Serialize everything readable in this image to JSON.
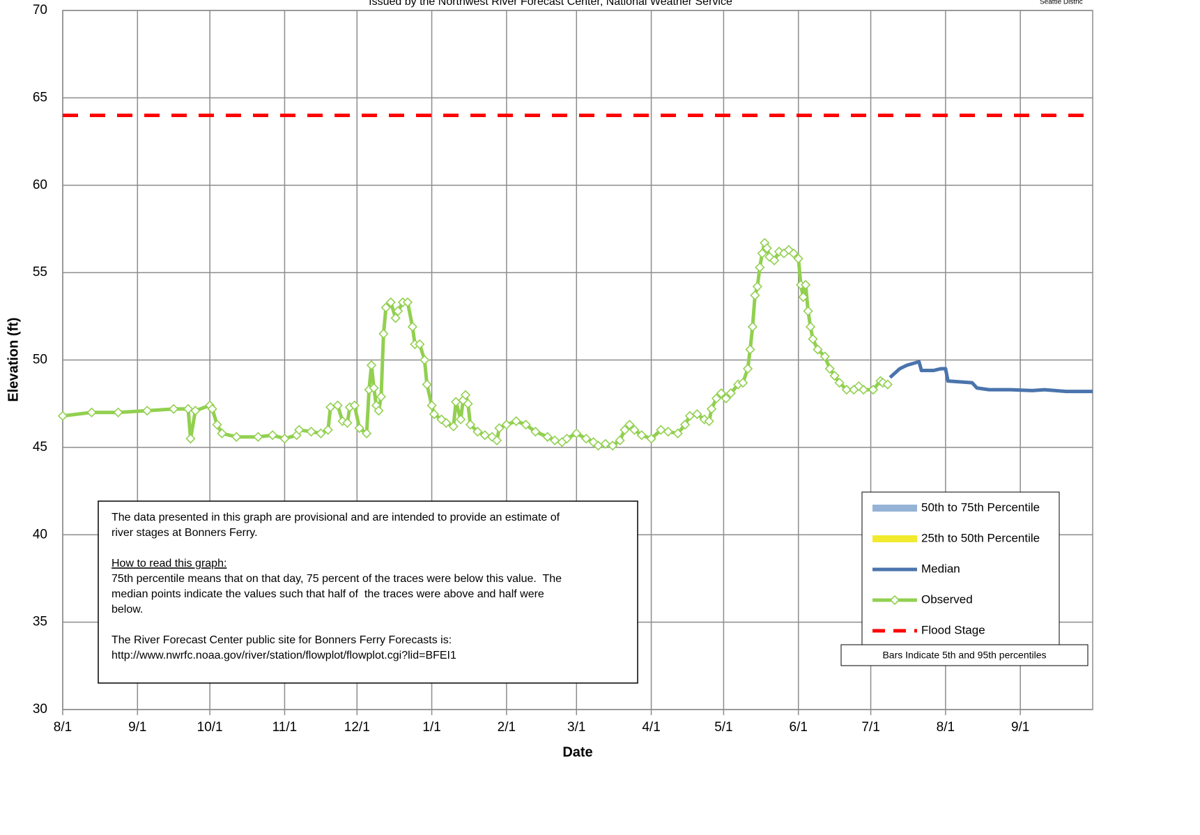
{
  "chart_data": {
    "type": "line",
    "title": "Issued by the Northwest River Forecast Center, National Weather Service",
    "subtitle": "Seattle Distric",
    "x_label": "Date",
    "y_label": "Elevation (ft)",
    "xlim": [
      0,
      427
    ],
    "ylim": [
      30,
      70
    ],
    "xticks": [
      {
        "value": 0,
        "label": "8/1"
      },
      {
        "value": 31,
        "label": "9/1"
      },
      {
        "value": 61,
        "label": "10/1"
      },
      {
        "value": 92,
        "label": "11/1"
      },
      {
        "value": 122,
        "label": "12/1"
      },
      {
        "value": 153,
        "label": "1/1"
      },
      {
        "value": 184,
        "label": "2/1"
      },
      {
        "value": 213,
        "label": "3/1"
      },
      {
        "value": 244,
        "label": "4/1"
      },
      {
        "value": 274,
        "label": "5/1"
      },
      {
        "value": 305,
        "label": "6/1"
      },
      {
        "value": 335,
        "label": "7/1"
      },
      {
        "value": 366,
        "label": "8/1"
      },
      {
        "value": 397,
        "label": "9/1"
      }
    ],
    "yticks": [
      30,
      35,
      40,
      45,
      50,
      55,
      60,
      65,
      70
    ],
    "grid": true,
    "legend_position": "lower right",
    "series": [
      {
        "name": "50th to 75th Percentile",
        "color": "#95b3d7",
        "style": "band"
      },
      {
        "name": "25th to 50th Percentile",
        "color": "#f2ea2e",
        "style": "band"
      },
      {
        "name": "Median",
        "color": "#4a74ac",
        "style": "line",
        "x": [
          343,
          347,
          350,
          355,
          356,
          361,
          364,
          366,
          367,
          377,
          379,
          384,
          393,
          402,
          407,
          416,
          427
        ],
        "values": [
          49.0,
          49.5,
          49.7,
          49.9,
          49.4,
          49.4,
          49.5,
          49.5,
          48.8,
          48.7,
          48.4,
          48.3,
          48.3,
          48.25,
          48.3,
          48.2,
          48.2
        ]
      },
      {
        "name": "Observed",
        "color": "#92d050",
        "style": "line-markers",
        "x": [
          0,
          12,
          23,
          35,
          46,
          52,
          53,
          55,
          61,
          62,
          64,
          66,
          72,
          81,
          87,
          92,
          97,
          98,
          103,
          107,
          110,
          111,
          114,
          116,
          118,
          119,
          121,
          123,
          126,
          127,
          128,
          129,
          130,
          131,
          132,
          133,
          134,
          136,
          138,
          139,
          141,
          143,
          145,
          146,
          148,
          150,
          151,
          153,
          154,
          157,
          159,
          162,
          163,
          165,
          166,
          167,
          168,
          169,
          172,
          175,
          178,
          180,
          181,
          184,
          188,
          192,
          196,
          201,
          204,
          207,
          209,
          213,
          217,
          220,
          222,
          225,
          228,
          231,
          233,
          235,
          237,
          240,
          244,
          248,
          251,
          255,
          258,
          260,
          263,
          266,
          268,
          269,
          271,
          273,
          275,
          277,
          280,
          282,
          284,
          285,
          286,
          287,
          288,
          289,
          290,
          291,
          292,
          293,
          295,
          297,
          299,
          301,
          303,
          305,
          306,
          307,
          308,
          309,
          310,
          311,
          313,
          316,
          318,
          320,
          322,
          325,
          328,
          330,
          332,
          336,
          339,
          340,
          342
        ],
        "values": [
          46.8,
          47.0,
          47.0,
          47.1,
          47.2,
          47.2,
          45.5,
          47.1,
          47.4,
          47.2,
          46.3,
          45.8,
          45.6,
          45.6,
          45.7,
          45.5,
          45.7,
          46.0,
          45.9,
          45.8,
          46.0,
          47.3,
          47.4,
          46.5,
          46.4,
          47.3,
          47.4,
          46.1,
          45.8,
          48.3,
          49.7,
          48.4,
          47.4,
          47.1,
          47.9,
          51.5,
          53.0,
          53.3,
          52.4,
          52.8,
          53.3,
          53.3,
          51.9,
          50.9,
          50.9,
          50.0,
          48.6,
          47.4,
          46.9,
          46.6,
          46.4,
          46.2,
          47.6,
          46.6,
          47.7,
          48.0,
          47.5,
          46.3,
          45.9,
          45.7,
          45.6,
          45.4,
          46.1,
          46.3,
          46.5,
          46.3,
          45.9,
          45.6,
          45.4,
          45.3,
          45.5,
          45.8,
          45.5,
          45.3,
          45.1,
          45.2,
          45.1,
          45.4,
          46.0,
          46.3,
          46.0,
          45.7,
          45.5,
          46.0,
          45.9,
          45.8,
          46.3,
          46.8,
          46.9,
          46.6,
          46.5,
          47.2,
          47.8,
          48.1,
          47.8,
          48.1,
          48.6,
          48.7,
          49.5,
          50.6,
          51.9,
          53.7,
          54.2,
          55.3,
          56.1,
          56.7,
          56.4,
          55.9,
          55.7,
          56.2,
          56.1,
          56.3,
          56.1,
          55.8,
          54.3,
          53.6,
          54.3,
          52.8,
          51.9,
          51.2,
          50.6,
          50.2,
          49.5,
          49.1,
          48.7,
          48.3,
          48.3,
          48.5,
          48.3,
          48.3,
          48.8,
          48.7,
          48.6
        ]
      },
      {
        "name": "Flood Stage",
        "color": "#ff0000",
        "style": "dashed",
        "x": [
          0,
          427
        ],
        "values": [
          64,
          64
        ]
      }
    ],
    "legend_note": "Bars Indicate 5th and 95th percentiles",
    "note": {
      "paragraph1": [
        "The data presented in this graph are provisional and are intended to provide an estimate of",
        "river stages at Bonners Ferry."
      ],
      "heading": "How to read this graph:",
      "paragraph2": [
        "75th percentile means that on that day, 75 percent of the traces were below this value.  The",
        "median points indicate the values such that half of  the traces were above and half were",
        "below."
      ],
      "paragraph3": [
        "The River Forecast Center public site for Bonners Ferry Forecasts is:",
        "http://www.nwrfc.noaa.gov/river/station/flowplot/flowplot.cgi?lid=BFEI1"
      ]
    }
  }
}
